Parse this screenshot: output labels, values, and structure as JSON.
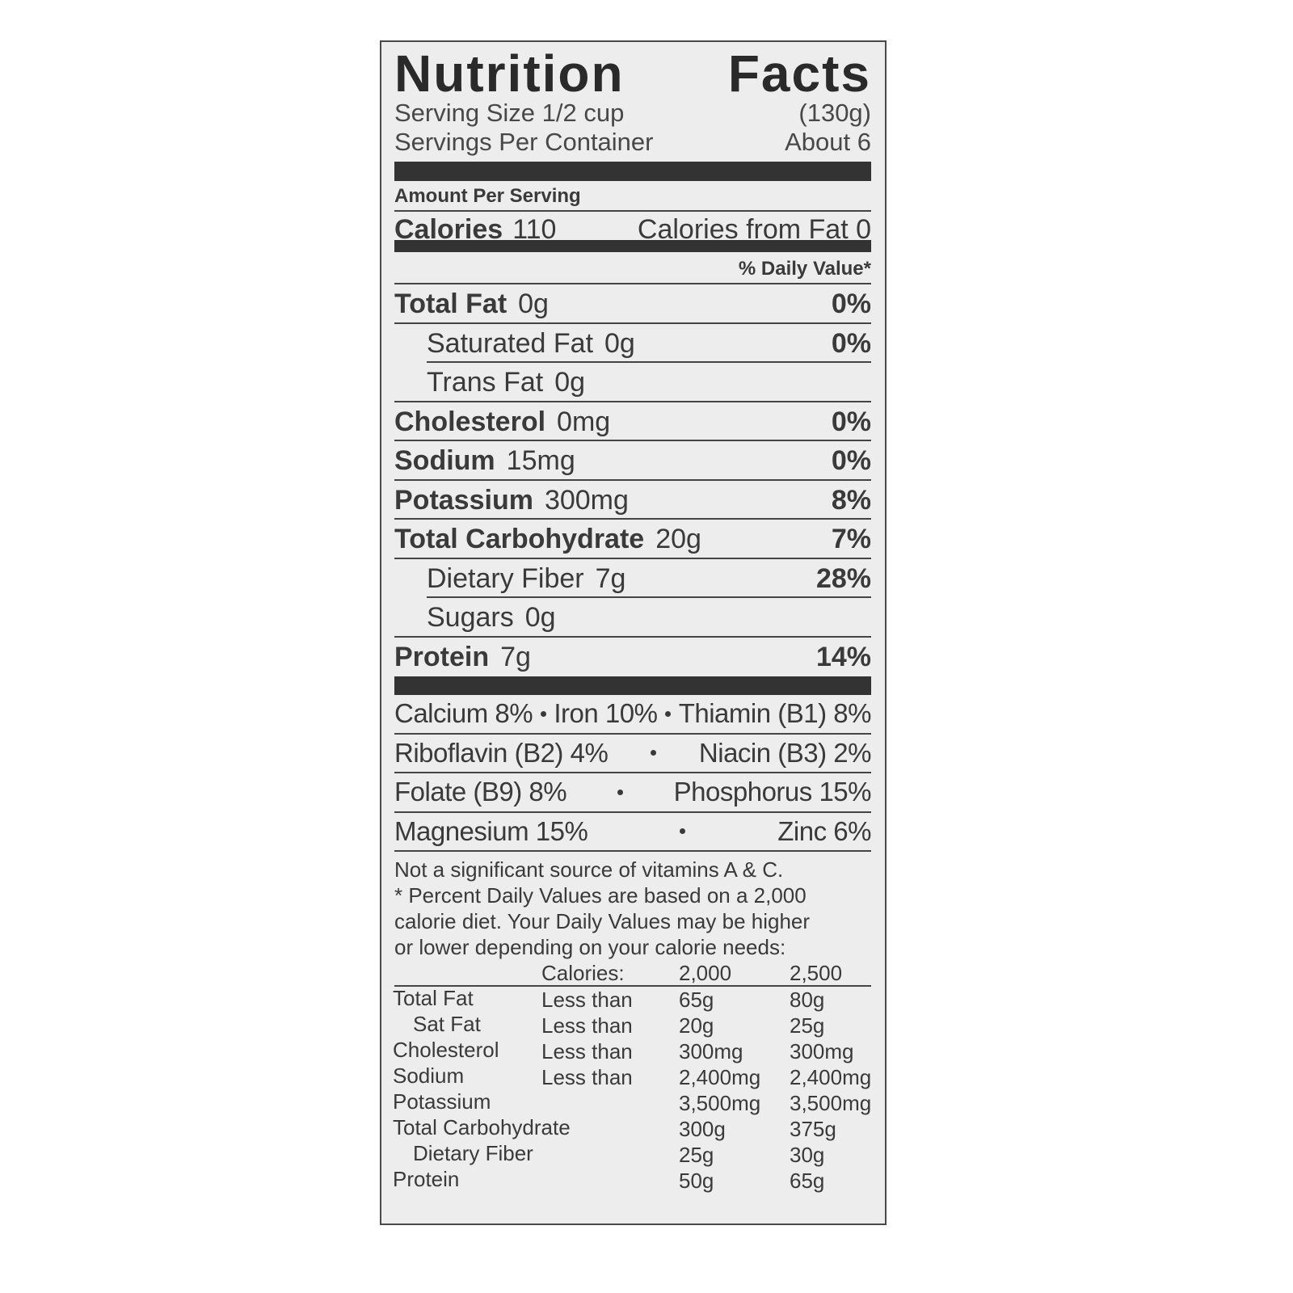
{
  "title": "Nutrition Facts",
  "serving": {
    "size_label": "Serving Size 1/2 cup",
    "size_value": "(130g)",
    "per_container_label": "Servings Per Container",
    "per_container_value": "About 6"
  },
  "amount_per_serving": "Amount Per Serving",
  "calories": {
    "label": "Calories",
    "value": "110",
    "from_fat": "Calories from Fat 0"
  },
  "daily_value_header": "% Daily Value*",
  "nutrients": [
    {
      "name": "Total Fat",
      "amount": "0g",
      "dv": "0%",
      "sub": [
        {
          "name": "Saturated Fat",
          "amount": "0g",
          "dv": "0%"
        },
        {
          "name": "Trans Fat",
          "amount": "0g"
        }
      ]
    },
    {
      "name": "Cholesterol",
      "amount": "0mg",
      "dv": "0%"
    },
    {
      "name": "Sodium",
      "amount": "15mg",
      "dv": "0%"
    },
    {
      "name": "Potassium",
      "amount": "300mg",
      "dv": "8%"
    },
    {
      "name": "Total Carbohydrate",
      "amount": "20g",
      "dv": "7%",
      "sub": [
        {
          "name": "Dietary Fiber",
          "amount": "7g",
          "dv": "28%"
        },
        {
          "name": "Sugars",
          "amount": "0g"
        }
      ]
    },
    {
      "name": "Protein",
      "amount": "7g",
      "dv": "14%"
    }
  ],
  "vitamins": [
    [
      "Calcium 8%",
      "Iron 10%",
      "Thiamin (B1) 8%"
    ],
    [
      "Riboflavin (B2) 4%",
      "Niacin (B3) 2%"
    ],
    [
      "Folate (B9) 8%",
      "Phosphorus 15%"
    ],
    [
      "Magnesium 15%",
      "Zinc 6%"
    ]
  ],
  "footnote": [
    "Not a significant source of vitamins A & C.",
    "* Percent Daily Values are based on a 2,000",
    "calorie diet. Your Daily Values may be higher",
    "or lower depending on your calorie needs:"
  ],
  "reference_table": {
    "header": {
      "label": "Calories:",
      "columns": [
        "2,000",
        "2,500"
      ]
    },
    "rows": [
      {
        "name": "Total Fat",
        "qualifier": "Less than",
        "values": [
          "65g",
          "80g"
        ]
      },
      {
        "name": "Sat Fat",
        "qualifier": "Less than",
        "values": [
          "20g",
          "25g"
        ]
      },
      {
        "name": "Cholesterol",
        "qualifier": "Less than",
        "values": [
          "300mg",
          "300mg"
        ]
      },
      {
        "name": "Sodium",
        "qualifier": "Less than",
        "values": [
          "2,400mg",
          "2,400mg"
        ]
      },
      {
        "name": "Potassium",
        "values": [
          "3,500mg",
          "3,500mg"
        ]
      },
      {
        "name": "Total Carbohydrate",
        "values": [
          "300g",
          "375g"
        ]
      },
      {
        "name": "Dietary Fiber",
        "values": [
          "25g",
          "30g"
        ]
      },
      {
        "name": "Protein",
        "values": [
          "50g",
          "65g"
        ]
      }
    ]
  }
}
